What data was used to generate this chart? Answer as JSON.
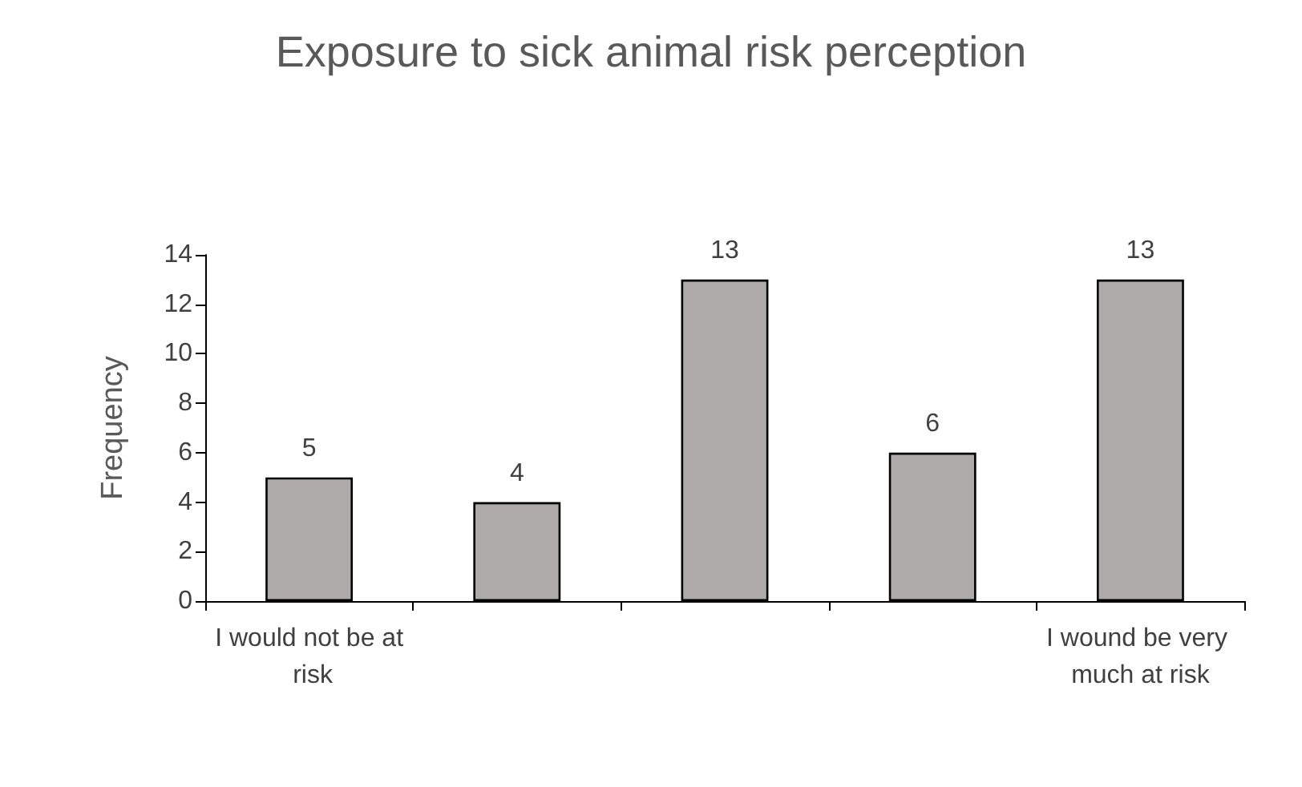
{
  "chart_data": {
    "type": "bar",
    "title": "Exposure to sick animal risk perception",
    "ylabel": "Frequency",
    "categories": [
      "I would not be at risk",
      null,
      null,
      null,
      "I wound be very much at risk"
    ],
    "values": [
      5,
      4,
      13,
      6,
      13
    ],
    "color": "#aeaaaa",
    "ylim": [
      0,
      14
    ],
    "yticks": [
      0,
      2,
      4,
      6,
      8,
      10,
      12,
      14
    ],
    "grid": false,
    "data_labels": true
  }
}
